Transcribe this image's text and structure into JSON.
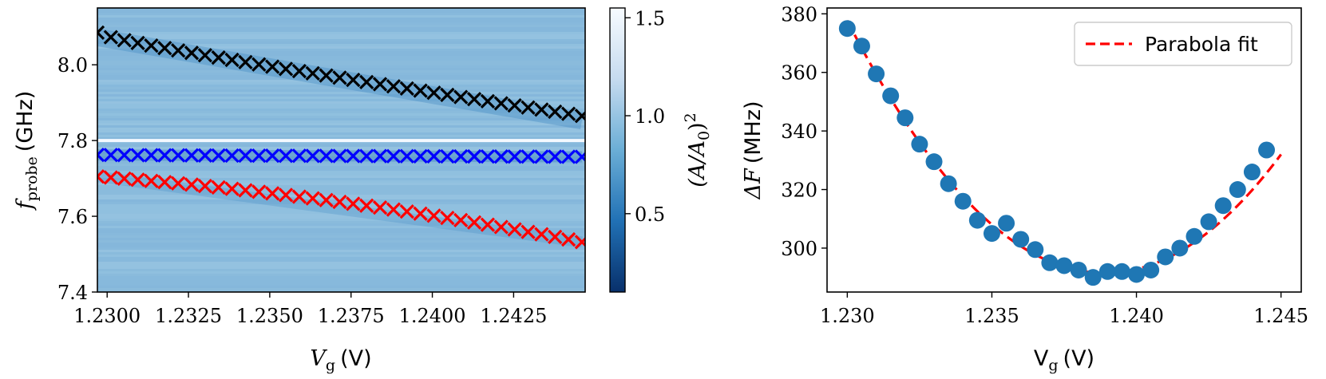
{
  "chart_data": [
    {
      "type": "heatmap",
      "xlabel": "V_g (V)",
      "xlabel_main": "V",
      "xlabel_sub": "g",
      "xlabel_unit": "(V)",
      "ylabel": "f_probe (GHz)",
      "ylabel_main": "f",
      "ylabel_sub": "probe",
      "ylabel_unit": "(GHz)",
      "xlim": [
        1.2297,
        1.2447
      ],
      "ylim": [
        7.4,
        8.15
      ],
      "x_ticks": [
        1.23,
        1.2325,
        1.235,
        1.2375,
        1.24,
        1.2425
      ],
      "x_tick_labels": [
        "1.2300",
        "1.2325",
        "1.2350",
        "1.2375",
        "1.2400",
        "1.2425"
      ],
      "y_ticks": [
        7.4,
        7.6,
        7.8,
        8.0
      ],
      "y_tick_labels": [
        "7.4",
        "7.6",
        "7.8",
        "8.0"
      ],
      "colorbar": {
        "label": "(A/A_0)^2",
        "label_main": "(A/A",
        "label_sub": "0",
        "label_close": ")",
        "label_sup": "2",
        "range": [
          0.1,
          1.55
        ],
        "ticks": [
          0.5,
          1.0,
          1.5
        ],
        "tick_labels": [
          "0.5",
          "1.0",
          "1.5"
        ]
      },
      "bright_line_f": 7.8,
      "series": [
        {
          "marker": "x",
          "color": "#000000",
          "x_start": 1.2297,
          "x_end": 1.2446,
          "count": 37,
          "f_start": 8.085,
          "f_end": 7.865
        },
        {
          "marker": "x",
          "color": "#0000ff",
          "x_start": 1.2297,
          "x_end": 1.2446,
          "count": 37,
          "f_start": 7.762,
          "f_end": 7.757
        },
        {
          "marker": "x",
          "color": "#ff0000",
          "x_start": 1.2297,
          "x_end": 1.2446,
          "count": 37,
          "f_start": 7.705,
          "f_end": 7.532
        }
      ]
    },
    {
      "type": "scatter",
      "xlabel": "V_g (V)",
      "xlabel_main": "V",
      "xlabel_sub": "g",
      "xlabel_unit": "(V)",
      "ylabel": "ΔF (MHz)",
      "ylabel_main": "ΔF",
      "ylabel_unit": "(MHz)",
      "xlim": [
        1.2293,
        1.2457
      ],
      "ylim": [
        285,
        382
      ],
      "x_ticks": [
        1.23,
        1.235,
        1.24,
        1.245
      ],
      "x_tick_labels": [
        "1.230",
        "1.235",
        "1.240",
        "1.245"
      ],
      "y_ticks": [
        300,
        320,
        340,
        360,
        380
      ],
      "y_tick_labels": [
        "300",
        "320",
        "340",
        "360",
        "380"
      ],
      "legend": {
        "position": "top-right",
        "label": "Parabola fit"
      },
      "points": {
        "color": "#1f77b4",
        "x": [
          1.23,
          1.2305,
          1.231,
          1.2315,
          1.232,
          1.2325,
          1.233,
          1.2335,
          1.234,
          1.2345,
          1.235,
          1.2355,
          1.236,
          1.2365,
          1.237,
          1.2375,
          1.238,
          1.2385,
          1.239,
          1.2395,
          1.24,
          1.2405,
          1.241,
          1.2415,
          1.242,
          1.2425,
          1.243,
          1.2435,
          1.244,
          1.2445
        ],
        "y": [
          375,
          369,
          359.5,
          352,
          344.5,
          335.5,
          329.5,
          322,
          316,
          309.5,
          305,
          308.5,
          303,
          299.5,
          295,
          294,
          292.5,
          290,
          292,
          292,
          291,
          292.5,
          297,
          300,
          304,
          309,
          314.5,
          320,
          326,
          333.5
        ]
      },
      "fit": {
        "color": "#ff0000",
        "style": "dashed",
        "x_range": [
          1.23,
          1.245
        ],
        "vertex_x": 1.2389,
        "vertex_y": 291.5,
        "a_per_V2": 1088000
      }
    }
  ]
}
